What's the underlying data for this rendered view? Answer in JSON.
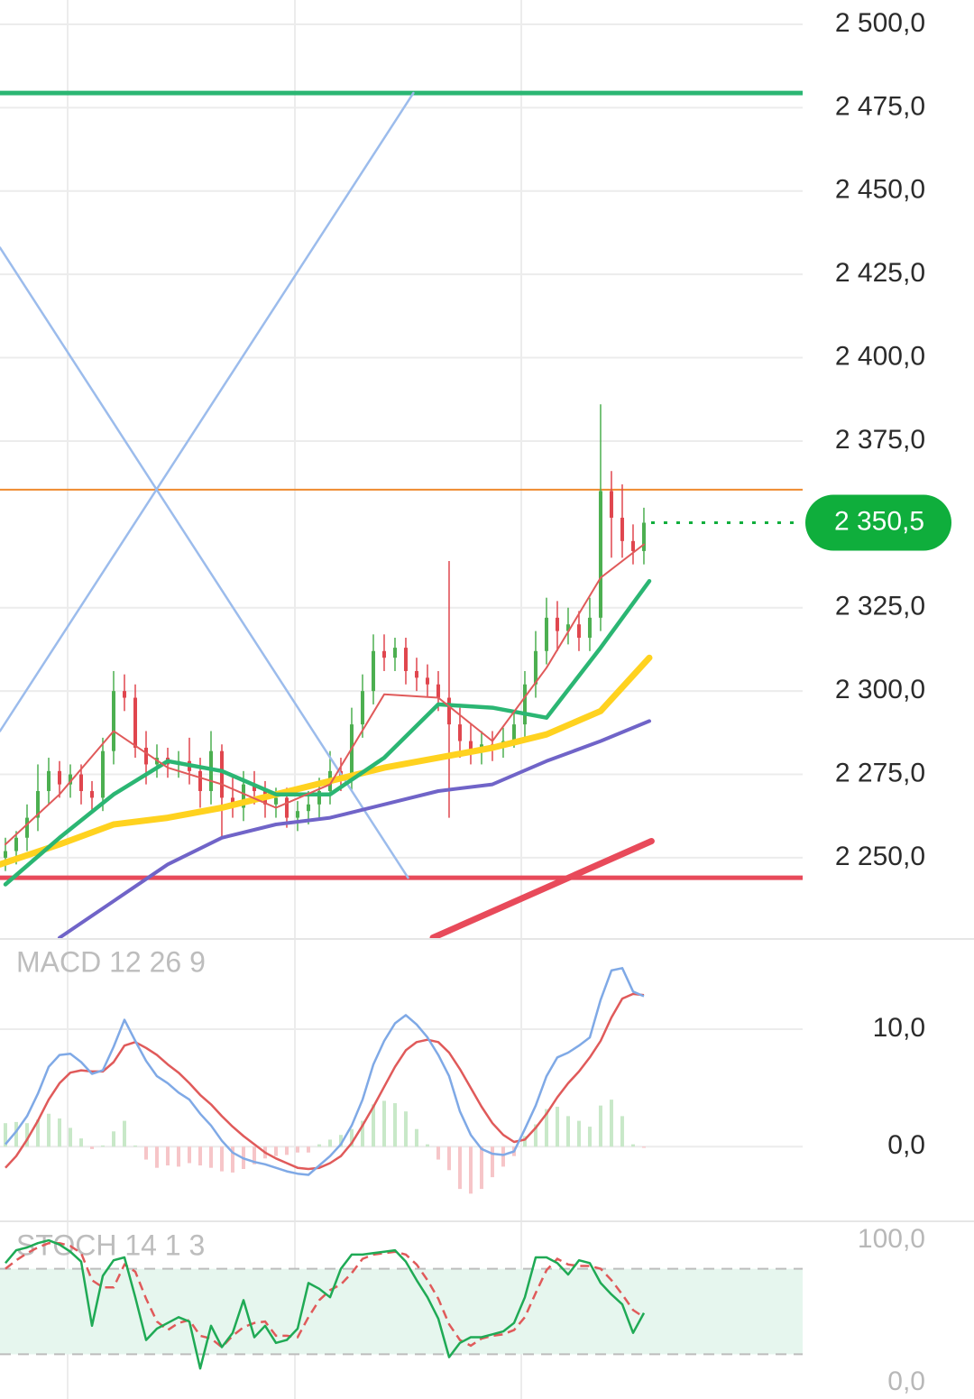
{
  "chart_data": [
    {
      "type": "candlestick",
      "xlim": [
        -0.5,
        73.67
      ],
      "ylim": [
        2225.9,
        2507.3
      ],
      "grid": true,
      "yticks": [
        {
          "value": 2500,
          "label": "2 500,0"
        },
        {
          "value": 2475,
          "label": "2 475,0"
        },
        {
          "value": 2450,
          "label": "2 450,0"
        },
        {
          "value": 2425,
          "label": "2 425,0"
        },
        {
          "value": 2400,
          "label": "2 400,0"
        },
        {
          "value": 2375,
          "label": "2 375,0"
        },
        {
          "value": 2325,
          "label": "2 325,0"
        },
        {
          "value": 2300,
          "label": "2 300,0"
        },
        {
          "value": 2275,
          "label": "2 275,0"
        },
        {
          "value": 2250,
          "label": "2 250,0"
        }
      ],
      "colors": {
        "up": "#4caf50",
        "down": "#e0464e"
      },
      "open": [
        2250,
        2252,
        2256,
        2262,
        2270,
        2276,
        2272,
        2275,
        2270,
        2268,
        2282,
        2300,
        2298,
        2283,
        2278,
        2280,
        2278,
        2279,
        2276,
        2270,
        2282,
        2268,
        2265,
        2272,
        2270,
        2266,
        2268,
        2262,
        2264,
        2266,
        2270,
        2276,
        2274,
        2290,
        2300,
        2312,
        2310,
        2313,
        2306,
        2304,
        2302,
        2298,
        2290,
        2285,
        2282,
        2284,
        2283,
        2285,
        2290,
        2302,
        2312,
        2322,
        2318,
        2320,
        2316,
        2322,
        2360,
        2352,
        2345,
        2342
      ],
      "high": [
        2256,
        2258,
        2266,
        2278,
        2280,
        2279,
        2278,
        2278,
        2273,
        2286,
        2306,
        2305,
        2302,
        2288,
        2284,
        2283,
        2282,
        2286,
        2280,
        2288,
        2284,
        2274,
        2276,
        2276,
        2273,
        2271,
        2271,
        2267,
        2270,
        2274,
        2282,
        2280,
        2295,
        2305,
        2317,
        2317,
        2316,
        2316,
        2310,
        2308,
        2306,
        2339,
        2295,
        2290,
        2288,
        2288,
        2289,
        2294,
        2306,
        2318,
        2328,
        2327,
        2325,
        2324,
        2328,
        2386,
        2366,
        2362,
        2350,
        2355
      ],
      "low": [
        2246,
        2248,
        2252,
        2258,
        2266,
        2268,
        2268,
        2266,
        2264,
        2264,
        2278,
        2294,
        2280,
        2272,
        2274,
        2274,
        2274,
        2272,
        2265,
        2266,
        2256,
        2262,
        2261,
        2266,
        2262,
        2262,
        2259,
        2258,
        2260,
        2262,
        2266,
        2270,
        2270,
        2286,
        2296,
        2306,
        2306,
        2302,
        2300,
        2298,
        2294,
        2262,
        2280,
        2278,
        2278,
        2279,
        2280,
        2283,
        2286,
        2298,
        2308,
        2312,
        2314,
        2312,
        2312,
        2318,
        2340,
        2340,
        2338,
        2338
      ],
      "close": [
        2252,
        2256,
        2262,
        2270,
        2276,
        2272,
        2275,
        2270,
        2268,
        2282,
        2300,
        2298,
        2283,
        2278,
        2280,
        2278,
        2279,
        2276,
        2270,
        2282,
        2268,
        2265,
        2272,
        2270,
        2266,
        2268,
        2262,
        2264,
        2266,
        2270,
        2276,
        2274,
        2290,
        2300,
        2312,
        2310,
        2313,
        2306,
        2304,
        2302,
        2298,
        2290,
        2285,
        2282,
        2284,
        2283,
        2285,
        2290,
        2302,
        2312,
        2322,
        2318,
        2320,
        2316,
        2322,
        2360,
        2352,
        2345,
        2342,
        2350.5
      ],
      "overlays": [
        {
          "color": "#9cbcec",
          "width": 2.5,
          "x": [
            -0.5,
            37.2
          ],
          "values": [
            2433,
            2244
          ]
        },
        {
          "color": "#9cbcec",
          "width": 2.5,
          "x": [
            -0.5,
            37.7
          ],
          "values": [
            2288,
            2479.4
          ]
        },
        {
          "color": "#7064c8",
          "width": 4,
          "x": [
            5,
            10,
            15,
            20,
            25,
            30,
            35,
            40,
            45,
            50,
            55,
            59.5
          ],
          "values": [
            2226,
            2237,
            2248,
            2256,
            2260,
            2262,
            2266,
            2270,
            2272,
            2279,
            2285,
            2291
          ]
        },
        {
          "color": "#ffd21f",
          "width": 7,
          "x": [
            -0.5,
            5,
            10,
            15,
            20,
            25,
            30,
            35,
            40,
            45,
            50,
            55,
            59.5
          ],
          "values": [
            2248,
            2254,
            2260,
            2262,
            2265,
            2269,
            2273,
            2277,
            2280,
            2283,
            2287,
            2294,
            2310
          ]
        },
        {
          "color": "#2bb673",
          "width": 4.5,
          "x": [
            0,
            5,
            10,
            15,
            20,
            25,
            30,
            35,
            40,
            45,
            50,
            55,
            59.5
          ],
          "values": [
            2242,
            2256,
            2269,
            2279,
            2276,
            2269,
            2269,
            2280,
            2296,
            2295,
            2292,
            2313,
            2333
          ]
        },
        {
          "color": "#e05a5a",
          "width": 2,
          "x": [
            0,
            5,
            10,
            15,
            20,
            25,
            30,
            35,
            40,
            45,
            50,
            55,
            59
          ],
          "values": [
            2254,
            2269,
            2288,
            2277,
            2272,
            2265,
            2272,
            2299,
            2298,
            2285,
            2307,
            2334,
            2344
          ]
        },
        {
          "color": "#e84a5a",
          "width": 7,
          "x": [
            39.5,
            59.7
          ],
          "values": [
            2226,
            2255
          ]
        }
      ],
      "levels": [
        {
          "value": 2479.4,
          "color": "#2bb673",
          "width": 5
        },
        {
          "value": 2360.4,
          "color": "#ef8a2e",
          "width": 2
        },
        {
          "value": 2244,
          "color": "#e84a5a",
          "width": 5
        }
      ],
      "last_price": {
        "value": 2350.5,
        "value_label": "2 350,5",
        "color": "#0fae3c"
      }
    },
    {
      "type": "macd",
      "title": "MACD 12 26 9",
      "xlim": [
        -0.5,
        73.67
      ],
      "ylim": [
        -6.2,
        17.6
      ],
      "grid": true,
      "yticks": [
        {
          "value": 10,
          "label": "10,0"
        },
        {
          "value": 0,
          "label": "0,0"
        }
      ],
      "macd_color": "#7fa9e6",
      "signal_color": "#e05a5a",
      "hist_colors": {
        "up": "#c8e8c8",
        "down": "#f6c5c8"
      },
      "macd": [
        0.2,
        1.3,
        2.6,
        4.5,
        6.8,
        7.8,
        7.9,
        7.2,
        6.2,
        6.5,
        8.5,
        10.8,
        9.0,
        7.3,
        6.0,
        5.4,
        4.6,
        4.0,
        2.8,
        1.8,
        0.5,
        -0.5,
        -1.0,
        -1.3,
        -1.5,
        -1.8,
        -2.1,
        -2.3,
        -2.4,
        -1.6,
        -0.8,
        0.2,
        1.8,
        4.0,
        7.0,
        9.0,
        10.5,
        11.2,
        10.4,
        9.3,
        7.8,
        6.0,
        3.0,
        1.0,
        -0.2,
        -0.6,
        -0.7,
        -0.4,
        1.5,
        3.5,
        6.0,
        7.6,
        8.0,
        8.6,
        9.3,
        12.5,
        15.0,
        15.2,
        13.2,
        12.8
      ],
      "signal": [
        -1.8,
        -0.8,
        0.6,
        2.2,
        4.0,
        5.4,
        6.3,
        6.5,
        6.4,
        6.4,
        7.2,
        8.6,
        8.9,
        8.4,
        7.8,
        7.0,
        6.3,
        5.4,
        4.4,
        3.6,
        2.6,
        1.7,
        0.9,
        0.2,
        -0.5,
        -1.0,
        -1.4,
        -1.8,
        -1.9,
        -1.8,
        -1.4,
        -0.8,
        0.3,
        1.8,
        3.4,
        5.1,
        6.8,
        8.2,
        8.9,
        9.1,
        8.9,
        8.0,
        6.6,
        5.0,
        3.4,
        2.0,
        1.0,
        0.4,
        0.6,
        1.6,
        2.8,
        4.2,
        5.4,
        6.4,
        7.6,
        9.0,
        11.0,
        12.6,
        13.0,
        12.9
      ],
      "histogram": [
        2.0,
        2.1,
        2.0,
        2.3,
        2.8,
        2.4,
        1.6,
        0.7,
        -0.2,
        0.1,
        1.3,
        2.2,
        0.1,
        -1.1,
        -1.8,
        -1.6,
        -1.7,
        -1.4,
        -1.6,
        -1.8,
        -2.1,
        -2.2,
        -1.9,
        -1.5,
        -1.0,
        -0.8,
        -0.7,
        -0.5,
        -0.5,
        0.2,
        0.6,
        1.0,
        1.5,
        2.2,
        3.6,
        3.9,
        3.7,
        3.0,
        1.5,
        0.2,
        -1.1,
        -2.0,
        -3.6,
        -4.0,
        -3.6,
        -2.6,
        -1.7,
        -0.8,
        0.9,
        1.9,
        3.2,
        3.4,
        2.6,
        2.2,
        1.7,
        3.5,
        4.0,
        2.6,
        0.2,
        -0.1
      ]
    },
    {
      "type": "stoch",
      "title": "STOCH 14 1 3",
      "xlim": [
        -0.5,
        73.67
      ],
      "ylim": [
        -11.4,
        112.7
      ],
      "grid": false,
      "yticks": [
        {
          "value": 100,
          "label": "100,0"
        },
        {
          "value": 0,
          "label": "0,0"
        }
      ],
      "bands": [
        20,
        80
      ],
      "band_color": "#e6f6ee",
      "k_color": "#1faa55",
      "d_color": "#e05a5a",
      "k": [
        84,
        93,
        95,
        98,
        100,
        97,
        92,
        85,
        40,
        75,
        86,
        88,
        60,
        30,
        38,
        42,
        46,
        43,
        10,
        40,
        25,
        35,
        58,
        32,
        40,
        28,
        30,
        38,
        70,
        66,
        60,
        80,
        90,
        90,
        91,
        92,
        93,
        85,
        72,
        60,
        45,
        18,
        28,
        32,
        32,
        34,
        36,
        42,
        60,
        88,
        88,
        84,
        76,
        86,
        84,
        70,
        62,
        55,
        35,
        49
      ],
      "d": [
        80,
        86,
        91,
        95,
        98,
        98,
        96,
        91,
        72,
        67,
        67,
        83,
        78,
        59,
        43,
        37,
        42,
        44,
        33,
        31,
        25,
        33,
        39,
        42,
        43,
        33,
        33,
        32,
        46,
        58,
        65,
        69,
        77,
        87,
        90,
        91,
        92,
        90,
        83,
        72,
        59,
        41,
        30,
        26,
        31,
        33,
        34,
        37,
        46,
        63,
        79,
        87,
        83,
        82,
        82,
        80,
        72,
        62,
        51,
        46
      ]
    }
  ]
}
